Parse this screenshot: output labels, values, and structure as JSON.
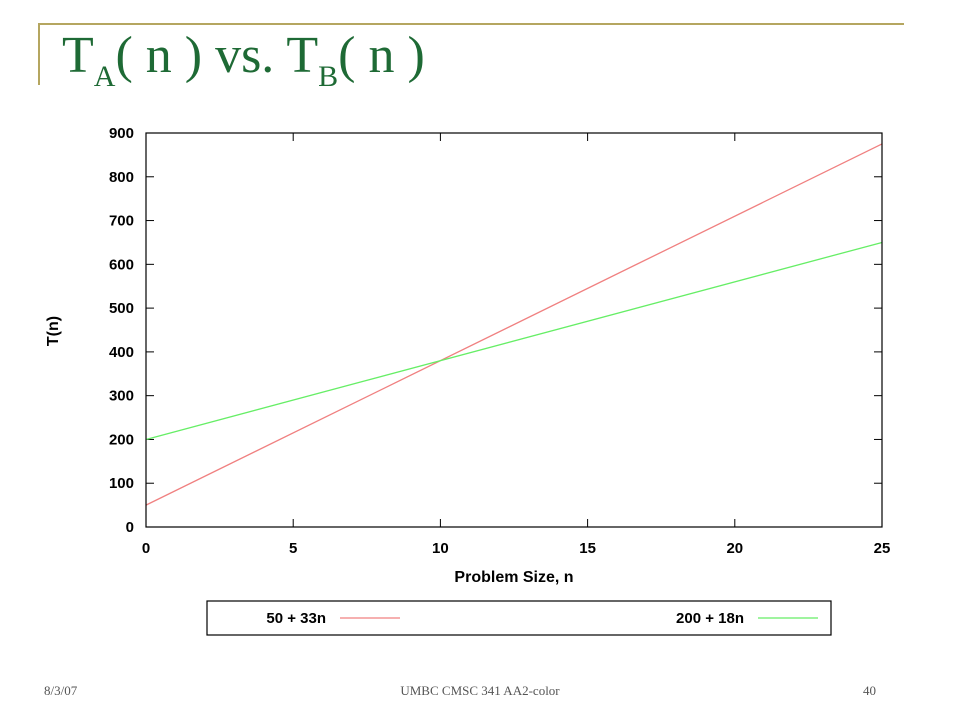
{
  "slide": {
    "title": {
      "main_a": "T",
      "sub_a": "A",
      "mid": "( n ) vs. T",
      "sub_b": "B",
      "end": "( n )"
    },
    "footer": {
      "date": "8/3/07",
      "course": "UMBC CMSC 341 AA2-color",
      "page": "40"
    },
    "colors": {
      "title": "#1e6a35",
      "frame": "#b5a660",
      "series_a": "#f08080",
      "series_b": "#66ee66"
    }
  },
  "chart_data": {
    "type": "line",
    "title": "",
    "xlabel": "Problem Size, n",
    "ylabel": "T(n)",
    "xlim": [
      0,
      25
    ],
    "ylim": [
      0,
      900
    ],
    "xticks": [
      "0",
      "5",
      "10",
      "15",
      "20",
      "25"
    ],
    "yticks": [
      "0",
      "100",
      "200",
      "300",
      "400",
      "500",
      "600",
      "700",
      "800",
      "900"
    ],
    "grid": false,
    "legend_position": "bottom",
    "series": [
      {
        "name": "50 + 33n",
        "color": "#f08080",
        "x": [
          0,
          25
        ],
        "y": [
          50,
          875
        ]
      },
      {
        "name": "200 + 18n",
        "color": "#66ee66",
        "x": [
          0,
          25
        ],
        "y": [
          200,
          650
        ]
      }
    ]
  }
}
